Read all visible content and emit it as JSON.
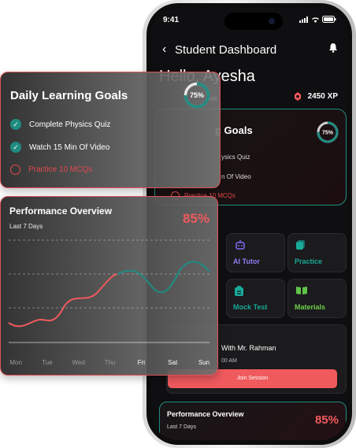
{
  "status": {
    "time": "9:41"
  },
  "header": {
    "title": "Student Dashboard",
    "greeting": "Hello, Ayesha",
    "streak_fragment": "ak",
    "xp": "2450 XP"
  },
  "goals": {
    "title": "Daily Learning Goals",
    "progress_label": "75%",
    "progress": 0.75,
    "items": [
      {
        "label": "Complete Physics Quiz",
        "done": true
      },
      {
        "label": "Watch 15 Min Of Video",
        "done": true
      },
      {
        "label": "Practice 10 MCQs",
        "done": false
      }
    ],
    "partial": {
      "title_fragment": "g Goals",
      "item1_fragment": "ysics Quiz",
      "item2_fragment": "n Of Video"
    }
  },
  "tiles": [
    {
      "label": "AI Tutor",
      "icon": "robot-icon",
      "color": "#7c6cf0"
    },
    {
      "label": "Practice",
      "icon": "practice-icon",
      "color": "#18a999"
    },
    {
      "label": "Mock Test",
      "icon": "clipboard-icon",
      "color": "#18a999"
    },
    {
      "label": "Materials",
      "icon": "book-icon",
      "color": "#5fc44a"
    }
  ],
  "session": {
    "with": "With Mr. Rahman",
    "time": "00 AM",
    "join_label": "Join Session"
  },
  "performance": {
    "title": "Performance Overview",
    "subtitle": "Last 7 Days",
    "percent": "85%",
    "days": [
      "Mon",
      "Tue",
      "Wed",
      "Thu",
      "Fri",
      "Sat",
      "Sun"
    ]
  },
  "colors": {
    "accent": "#ef5a5d",
    "teal": "#1f8c82",
    "bg": "#0f0e10"
  }
}
